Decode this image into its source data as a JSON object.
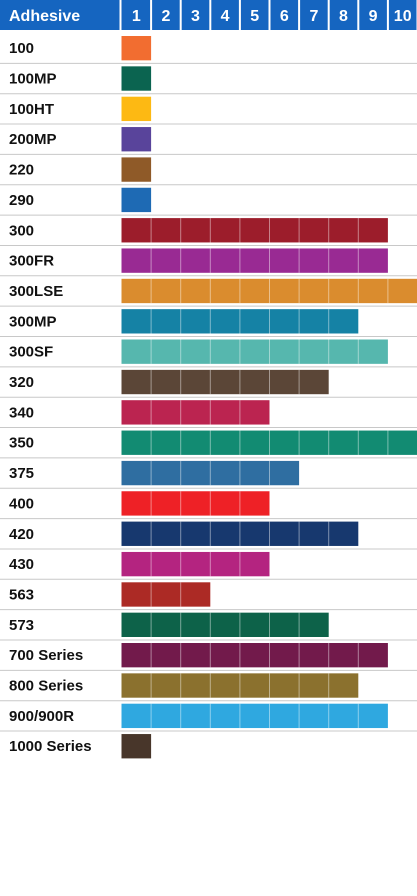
{
  "chart_data": {
    "type": "bar",
    "orientation": "horizontal",
    "category_header": "Adhesive",
    "xticks": [
      "1",
      "2",
      "3",
      "4",
      "5",
      "6",
      "7",
      "8",
      "9",
      "10"
    ],
    "xlim": [
      0,
      10
    ],
    "grid": true,
    "header_color": "#1565c0",
    "categories": [
      "100",
      "100MP",
      "100HT",
      "200MP",
      "220",
      "290",
      "300",
      "300FR",
      "300LSE",
      "300MP",
      "300SF",
      "320",
      "340",
      "350",
      "375",
      "400",
      "420",
      "430",
      "563",
      "573",
      "700 Series",
      "800 Series",
      "900/900R",
      "1000 Series"
    ],
    "values": [
      1,
      1,
      1,
      1,
      1,
      1,
      9,
      9,
      10,
      8,
      9,
      7,
      5,
      10,
      6,
      5,
      8,
      5,
      3,
      7,
      9,
      8,
      9,
      1
    ],
    "colors": [
      "#f26d30",
      "#0b6450",
      "#fdb913",
      "#59449b",
      "#8f5a28",
      "#1e6ab4",
      "#9c1d2b",
      "#992a93",
      "#da8c2e",
      "#1582a5",
      "#56b7ae",
      "#5b4637",
      "#bb2450",
      "#128b72",
      "#2f6ea1",
      "#ee2126",
      "#17386e",
      "#b42480",
      "#ac2a25",
      "#0d6249",
      "#721a4b",
      "#8b712e",
      "#2fa8e0",
      "#48362a"
    ]
  }
}
